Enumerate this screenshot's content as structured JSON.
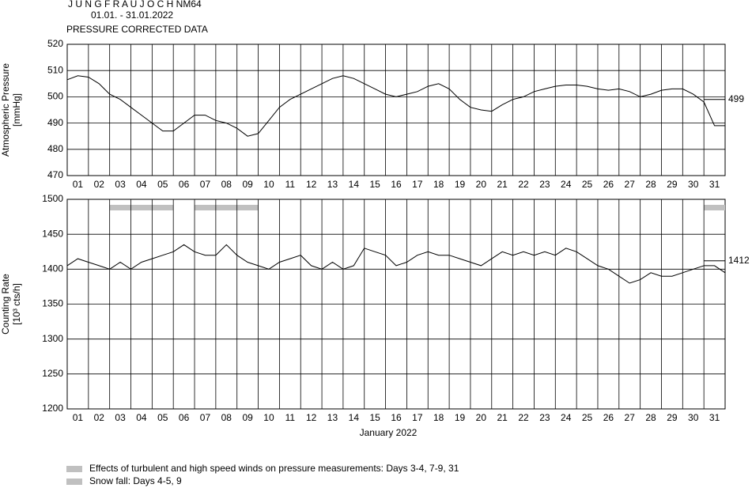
{
  "header": {
    "title": "J U N G F R A U J O C H  NM64",
    "dates": "01.01. - 31.01.2022",
    "subtitle": "PRESSURE CORRECTED DATA"
  },
  "chart_data": [
    {
      "type": "line",
      "ylabel": [
        "Atmospheric Pressure",
        "[mmHg]"
      ],
      "x": [
        1,
        1.5,
        2,
        2.5,
        3,
        3.5,
        4,
        4.5,
        5,
        5.5,
        6,
        6.5,
        7,
        7.5,
        8,
        8.5,
        9,
        9.5,
        10,
        10.5,
        11,
        11.5,
        12,
        12.5,
        13,
        13.5,
        14,
        14.5,
        15,
        15.5,
        16,
        16.5,
        17,
        17.5,
        18,
        18.5,
        19,
        19.5,
        20,
        20.5,
        21,
        21.5,
        22,
        22.5,
        23,
        23.5,
        24,
        24.5,
        25,
        25.5,
        26,
        26.5,
        27,
        27.5,
        28,
        28.5,
        29,
        29.5,
        30,
        30.5,
        31,
        31.5,
        32
      ],
      "values": [
        506.5,
        508,
        507.5,
        505,
        501,
        499,
        496,
        493,
        490,
        487,
        487,
        490,
        493,
        493,
        491,
        490,
        488,
        485,
        486,
        491,
        496,
        499,
        501,
        503,
        505,
        507,
        508,
        507,
        505,
        503,
        501,
        500,
        501,
        502,
        504,
        505,
        503,
        499,
        496,
        495,
        494.5,
        497,
        499,
        500,
        502,
        503,
        504,
        504.5,
        504.5,
        504,
        503,
        502.5,
        503,
        502,
        500,
        501,
        502.5,
        503,
        503,
        501,
        498,
        489,
        489
      ],
      "color": "#000000",
      "xlim": [
        1,
        32
      ],
      "ylim": [
        470,
        520
      ],
      "yticks": [
        470,
        480,
        490,
        500,
        510,
        520
      ],
      "xgrid": [
        2,
        3,
        4,
        5,
        6,
        7,
        8,
        9,
        10,
        11,
        12,
        13,
        14,
        15,
        16,
        17,
        18,
        19,
        20,
        21,
        22,
        23,
        24,
        25,
        26,
        27,
        28,
        29,
        30,
        31
      ],
      "xticks": [
        {
          "value": 1.5,
          "label": "01"
        },
        {
          "value": 2.5,
          "label": "02"
        },
        {
          "value": 3.5,
          "label": "03"
        },
        {
          "value": 4.5,
          "label": "04"
        },
        {
          "value": 5.5,
          "label": "05"
        },
        {
          "value": 6.5,
          "label": "06"
        },
        {
          "value": 7.5,
          "label": "07"
        },
        {
          "value": 8.5,
          "label": "08"
        },
        {
          "value": 9.5,
          "label": "09"
        },
        {
          "value": 10.5,
          "label": "10"
        },
        {
          "value": 11.5,
          "label": "11"
        },
        {
          "value": 12.5,
          "label": "12"
        },
        {
          "value": 13.5,
          "label": "13"
        },
        {
          "value": 14.5,
          "label": "14"
        },
        {
          "value": 15.5,
          "label": "15"
        },
        {
          "value": 16.5,
          "label": "16"
        },
        {
          "value": 17.5,
          "label": "17"
        },
        {
          "value": 18.5,
          "label": "18"
        },
        {
          "value": 19.5,
          "label": "19"
        },
        {
          "value": 20.5,
          "label": "20"
        },
        {
          "value": 21.5,
          "label": "21"
        },
        {
          "value": 22.5,
          "label": "22"
        },
        {
          "value": 23.5,
          "label": "23"
        },
        {
          "value": 24.5,
          "label": "24"
        },
        {
          "value": 25.5,
          "label": "25"
        },
        {
          "value": 26.5,
          "label": "26"
        },
        {
          "value": 27.5,
          "label": "27"
        },
        {
          "value": 28.5,
          "label": "28"
        },
        {
          "value": 29.5,
          "label": "29"
        },
        {
          "value": 30.5,
          "label": "30"
        },
        {
          "value": 31.5,
          "label": "31"
        }
      ],
      "reference": 499
    },
    {
      "type": "line",
      "ylabel": [
        "Counting Rate",
        "[10³ cts/h]"
      ],
      "xlabel": "January 2022",
      "x": [
        1,
        1.5,
        2,
        2.5,
        3,
        3.5,
        4,
        4.5,
        5,
        5.5,
        6,
        6.5,
        7,
        7.5,
        8,
        8.5,
        9,
        9.5,
        10,
        10.5,
        11,
        11.5,
        12,
        12.5,
        13,
        13.5,
        14,
        14.5,
        15,
        15.5,
        16,
        16.5,
        17,
        17.5,
        18,
        18.5,
        19,
        19.5,
        20,
        20.5,
        21,
        21.5,
        22,
        22.5,
        23,
        23.5,
        24,
        24.5,
        25,
        25.5,
        26,
        26.5,
        27,
        27.5,
        28,
        28.5,
        29,
        29.5,
        30,
        30.5,
        31,
        31.5,
        32
      ],
      "values": [
        1405,
        1415,
        1410,
        1405,
        1400,
        1410,
        1400,
        1410,
        1415,
        1420,
        1425,
        1435,
        1425,
        1420,
        1420,
        1435,
        1420,
        1410,
        1405,
        1400,
        1410,
        1415,
        1420,
        1405,
        1400,
        1410,
        1400,
        1405,
        1430,
        1425,
        1420,
        1405,
        1410,
        1420,
        1425,
        1420,
        1420,
        1415,
        1410,
        1405,
        1415,
        1425,
        1420,
        1425,
        1420,
        1425,
        1420,
        1430,
        1425,
        1415,
        1405,
        1400,
        1390,
        1380,
        1385,
        1395,
        1390,
        1390,
        1395,
        1400,
        1405,
        1405,
        1395
      ],
      "color": "#000000",
      "xlim": [
        1,
        32
      ],
      "ylim": [
        1200,
        1500
      ],
      "yticks": [
        1200,
        1250,
        1300,
        1350,
        1400,
        1450,
        1500
      ],
      "xgrid": [
        2,
        3,
        4,
        5,
        6,
        7,
        8,
        9,
        10,
        11,
        12,
        13,
        14,
        15,
        16,
        17,
        18,
        19,
        20,
        21,
        22,
        23,
        24,
        25,
        26,
        27,
        28,
        29,
        30,
        31
      ],
      "xticks": [
        {
          "value": 1.5,
          "label": "01"
        },
        {
          "value": 2.5,
          "label": "02"
        },
        {
          "value": 3.5,
          "label": "03"
        },
        {
          "value": 4.5,
          "label": "04"
        },
        {
          "value": 5.5,
          "label": "05"
        },
        {
          "value": 6.5,
          "label": "06"
        },
        {
          "value": 7.5,
          "label": "07"
        },
        {
          "value": 8.5,
          "label": "08"
        },
        {
          "value": 9.5,
          "label": "09"
        },
        {
          "value": 10.5,
          "label": "10"
        },
        {
          "value": 11.5,
          "label": "11"
        },
        {
          "value": 12.5,
          "label": "12"
        },
        {
          "value": 13.5,
          "label": "13"
        },
        {
          "value": 14.5,
          "label": "14"
        },
        {
          "value": 15.5,
          "label": "15"
        },
        {
          "value": 16.5,
          "label": "16"
        },
        {
          "value": 17.5,
          "label": "17"
        },
        {
          "value": 18.5,
          "label": "18"
        },
        {
          "value": 19.5,
          "label": "19"
        },
        {
          "value": 20.5,
          "label": "20"
        },
        {
          "value": 21.5,
          "label": "21"
        },
        {
          "value": 22.5,
          "label": "22"
        },
        {
          "value": 23.5,
          "label": "23"
        },
        {
          "value": 24.5,
          "label": "24"
        },
        {
          "value": 25.5,
          "label": "25"
        },
        {
          "value": 26.5,
          "label": "26"
        },
        {
          "value": 27.5,
          "label": "27"
        },
        {
          "value": 28.5,
          "label": "28"
        },
        {
          "value": 29.5,
          "label": "29"
        },
        {
          "value": 30.5,
          "label": "30"
        },
        {
          "value": 31.5,
          "label": "31"
        }
      ],
      "reference": 1412,
      "bands": [
        [
          3,
          6
        ],
        [
          7,
          10
        ],
        [
          31,
          32
        ]
      ],
      "band_color": "#c0c0c0"
    }
  ],
  "legend": [
    {
      "label": "Effects of turbulent and high speed winds on pressure measurements: Days 3-4, 7-9, 31",
      "color": "#c0c0c0"
    },
    {
      "label": "Snow fall: Days 4-5, 9",
      "color": "#c0c0c0"
    }
  ]
}
